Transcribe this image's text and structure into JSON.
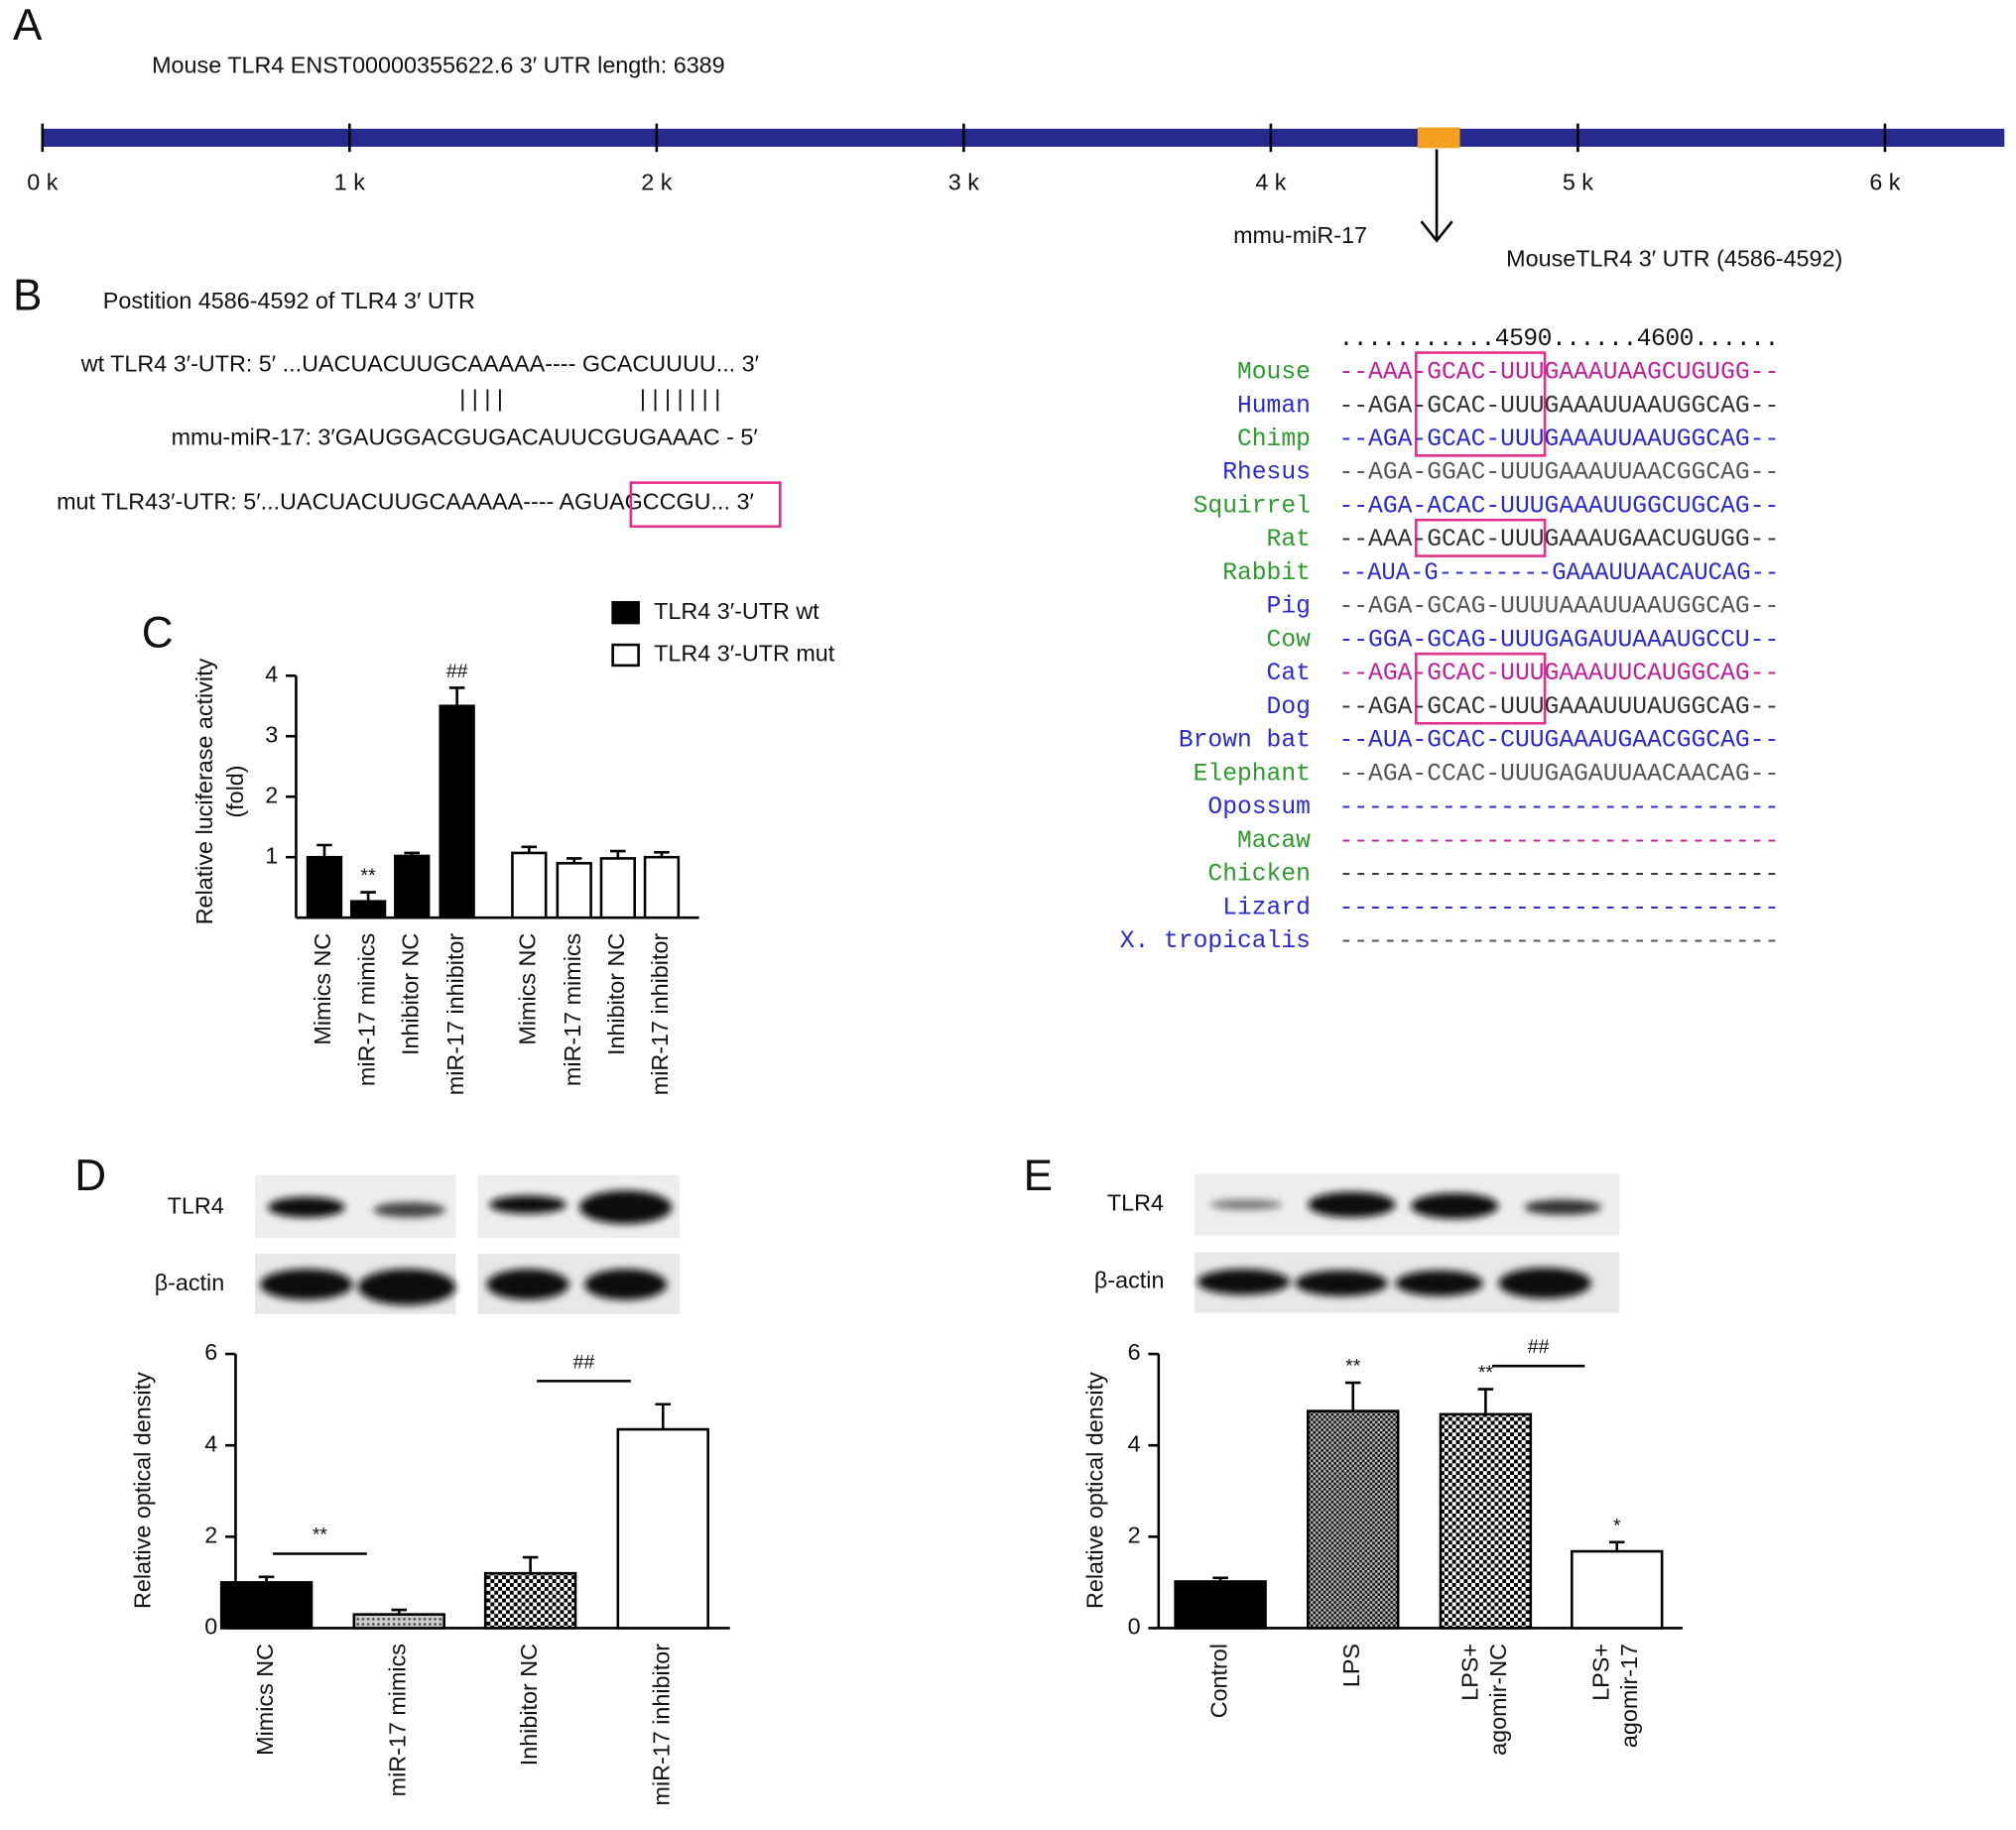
{
  "figure": {
    "panel_labels": [
      "A",
      "B",
      "C",
      "D",
      "E"
    ]
  },
  "panel_a": {
    "title": "Mouse TLR4 ENST00000355622.6 3′ UTR length: 6389",
    "xlim": [
      0,
      6389
    ],
    "xticks": [
      {
        "value": 0,
        "label": "0 k"
      },
      {
        "value": 1000,
        "label": "1 k"
      },
      {
        "value": 2000,
        "label": "2 k"
      },
      {
        "value": 3000,
        "label": "3 k"
      },
      {
        "value": 4000,
        "label": "4 k"
      },
      {
        "value": 5000,
        "label": "5 k"
      },
      {
        "value": 6000,
        "label": "6 k"
      }
    ],
    "bar_color": "#262a8f",
    "highlight": [
      4478,
      4616
    ],
    "highlight_color": "#f5a020",
    "mirna": "mmu-miR-17",
    "site_label": "MouseTLR4 3′ UTR (4586-4592)"
  },
  "panel_b": {
    "heading": "Postition 4586-4592 of TLR4 3′ UTR",
    "wt": "wt TLR4 3′-UTR: 5′ ...UACUACUUGCAAAAA---- GCACUUUU... 3′",
    "pairing_left": "| | | |",
    "pairing_right": "| | | | | | |",
    "mirna": "mmu-miR-17: 3′GAUGGACGUGACAUUCGUGAAAC - 5′",
    "mut": "mut TLR43′-UTR: 5′...UACUACUUGCAAAAA---- AGUAGCCGU... 3′",
    "ruler": "...........4590......4600......",
    "alignment": [
      {
        "name": "Mouse",
        "name_color": "#2e9a2e",
        "sequence": "--AAA-GCAC-UUUGAAAUAAGCUGUGG--",
        "color": "#c0209a"
      },
      {
        "name": "Human",
        "name_color": "#2a2ad0",
        "sequence": "--AGA-GCAC-UUUGAAAUUAAUGGCAG--",
        "color": "#333333"
      },
      {
        "name": "Chimp",
        "name_color": "#2e9a2e",
        "sequence": "--AGA-GCAC-UUUGAAAUUAAUGGCAG--",
        "color": "#2a2ad0"
      },
      {
        "name": "Rhesus",
        "name_color": "#2a2ad0",
        "sequence": "--AGA-GGAC-UUUGAAAUUAACGGCAG--",
        "color": "#555555"
      },
      {
        "name": "Squirrel",
        "name_color": "#2e9a2e",
        "sequence": "--AGA-ACAC-UUUGAAAUUGGCUGCAG--",
        "color": "#2a2ad0"
      },
      {
        "name": "Rat",
        "name_color": "#2e9a2e",
        "sequence": "--AAA-GCAC-UUUGAAAUGAACUGUGG--",
        "color": "#333333"
      },
      {
        "name": "Rabbit",
        "name_color": "#2e9a2e",
        "sequence": "--AUA-G--------GAAAUUAACAUCAG--",
        "color": "#2a2ad0"
      },
      {
        "name": "Pig",
        "name_color": "#2a2ad0",
        "sequence": "--AGA-GCAG-UUUUAAAUUAAUGGCAG--",
        "color": "#555555"
      },
      {
        "name": "Cow",
        "name_color": "#2e9a2e",
        "sequence": "--GGA-GCAG-UUUGAGAUUAAAUGCCU--",
        "color": "#2a2ad0"
      },
      {
        "name": "Cat",
        "name_color": "#2a2ad0",
        "sequence": "--AGA-GCAC-UUUGAAAUUCAUGGCAG--",
        "color": "#c0209a"
      },
      {
        "name": "Dog",
        "name_color": "#2a2ad0",
        "sequence": "--AGA-GCAC-UUUGAAAUUUAUGGCAG--",
        "color": "#333333"
      },
      {
        "name": "Brown bat",
        "name_color": "#2a2ad0",
        "sequence": "--AUA-GCAC-CUUGAAAUGAACGGCAG--",
        "color": "#2a2ad0"
      },
      {
        "name": "Elephant",
        "name_color": "#2e9a2e",
        "sequence": "--AGA-CCAC-UUUGAGAUUAACAACAG--",
        "color": "#555555"
      },
      {
        "name": "Opossum",
        "name_color": "#2a2ad0",
        "sequence": "------------------------------",
        "color": "#2a2ad0"
      },
      {
        "name": "Macaw",
        "name_color": "#2e9a2e",
        "sequence": "------------------------------",
        "color": "#c0209a"
      },
      {
        "name": "Chicken",
        "name_color": "#2e9a2e",
        "sequence": "------------------------------",
        "color": "#333333"
      },
      {
        "name": "Lizard",
        "name_color": "#2a2ad0",
        "sequence": "------------------------------",
        "color": "#2a2ad0"
      },
      {
        "name": "X. tropicalis",
        "name_color": "#2a2ad0",
        "sequence": "------------------------------",
        "color": "#555555"
      }
    ]
  },
  "blots": {
    "d": [
      "TLR4",
      "β-actin"
    ],
    "e": [
      "TLR4",
      "β-actin"
    ]
  },
  "chart_data": [
    {
      "type": "bar",
      "ylabel": [
        "Relative luciferase activity",
        "(fold)"
      ],
      "categories": [
        "Mimics NC",
        "miR-17 mimics",
        "Inhibitor NC",
        "miR-17 inhibitor",
        "Mimics NC",
        "miR-17 mimics",
        "Inhibitor NC",
        "miR-17 inhibitor"
      ],
      "series": [
        {
          "name": "TLR4 3′-UTR wt",
          "color": "#000000",
          "values": [
            1.0,
            0.27,
            1.02,
            3.5,
            null,
            null,
            null,
            null
          ],
          "errors": [
            0.2,
            0.15,
            0.05,
            0.3,
            null,
            null,
            null,
            null
          ]
        },
        {
          "name": "TLR4 3′-UTR mut",
          "color": "#ffffff",
          "values": [
            null,
            null,
            null,
            null,
            1.07,
            0.9,
            0.98,
            1.0
          ],
          "errors": [
            null,
            null,
            null,
            null,
            0.1,
            0.08,
            0.12,
            0.08
          ]
        }
      ],
      "marks": [
        null,
        "**",
        null,
        "##",
        null,
        null,
        null,
        null
      ],
      "ylim": [
        0,
        4
      ],
      "yticks": [
        1,
        2,
        3,
        4
      ],
      "legend": "top-right"
    },
    {
      "type": "bar",
      "ylabel": "Relative optical density",
      "categories": [
        "Mimics NC",
        "miR-17 mimics",
        "Inhibitor NC",
        "miR-17 inhibitor"
      ],
      "values": [
        1.0,
        0.3,
        1.2,
        4.35
      ],
      "errors": [
        0.12,
        0.1,
        0.35,
        0.55
      ],
      "fills": [
        "solid",
        "dots",
        "checker",
        "white"
      ],
      "bracket_labels": [
        "**",
        null,
        "##",
        null
      ],
      "ylim": [
        0,
        6
      ],
      "yticks": [
        0,
        2,
        4,
        6
      ]
    },
    {
      "type": "bar",
      "ylabel": "Relative optical density",
      "categories": [
        [
          "Control"
        ],
        [
          "LPS"
        ],
        [
          "LPS+",
          "agomir-NC"
        ],
        [
          "LPS+",
          "agomir-17"
        ]
      ],
      "values": [
        1.02,
        4.75,
        4.68,
        1.68
      ],
      "errors": [
        0.08,
        0.62,
        0.55,
        0.2
      ],
      "fills": [
        "solid",
        "dense",
        "checker",
        "white"
      ],
      "marks": [
        null,
        "**",
        "**",
        "*"
      ],
      "bracket_labels": [
        null,
        null,
        "##",
        null
      ],
      "ylim": [
        0,
        6
      ],
      "yticks": [
        0,
        2,
        4,
        6
      ]
    }
  ]
}
